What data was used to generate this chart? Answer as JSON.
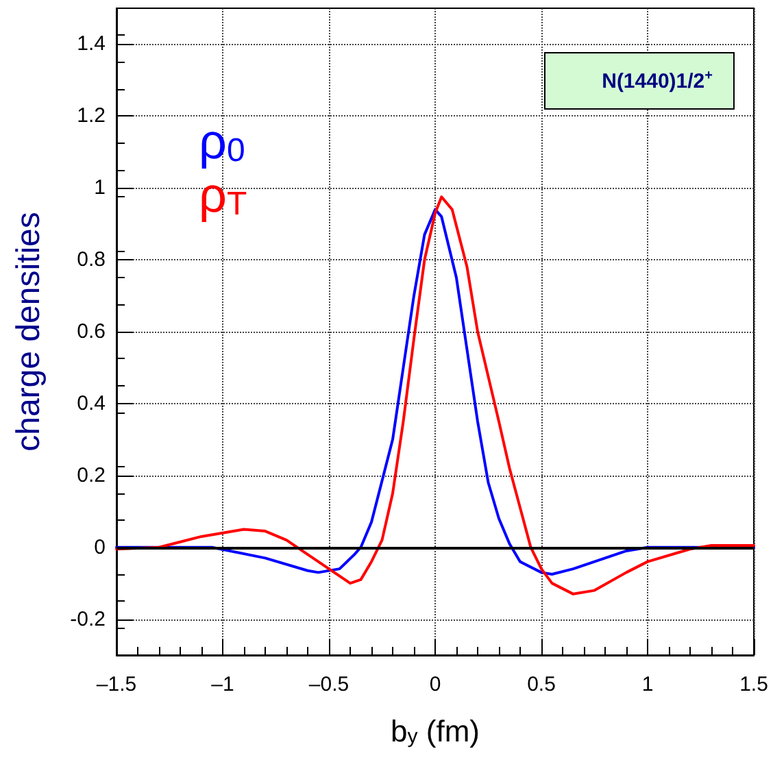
{
  "chart_data": {
    "type": "line",
    "xlabel": "b$_{y}$ (fm)",
    "ylabel": "charge densities",
    "annotations": [
      "N(1440)1/2$^{+}$"
    ],
    "xlim": [
      -1.5,
      1.5
    ],
    "xticks": [
      {
        "value": -1.5,
        "label": "–1.5"
      },
      {
        "value": -1,
        "label": "–1"
      },
      {
        "value": -0.5,
        "label": "–0.5"
      },
      0,
      0.5,
      1,
      1.5
    ],
    "ylim": [
      -0.3,
      1.5
    ],
    "yticks": [
      -0.2,
      0,
      0.2,
      0.4,
      0.6,
      0.8,
      1,
      1.2,
      1.4
    ],
    "grid": true,
    "legend": "top left",
    "marker": "none",
    "line_style": "solid",
    "ref_lines": [
      {
        "axis": "y",
        "value": 0,
        "label": null,
        "color": "#000000"
      }
    ],
    "series": [
      {
        "name": "ρ$_{0}$",
        "color": "#0000ff",
        "x": [
          -1.5,
          -1.05,
          -0.8,
          -0.6,
          -0.55,
          -0.45,
          -0.38,
          -0.35,
          -0.3,
          -0.2,
          -0.15,
          -0.1,
          -0.05,
          0,
          0.03,
          0.1,
          0.15,
          0.2,
          0.25,
          0.3,
          0.35,
          0.4,
          0.5,
          0.55,
          0.65,
          0.8,
          0.9,
          1.0,
          1.5
        ],
        "values": [
          0,
          0,
          -0.03,
          -0.065,
          -0.07,
          -0.06,
          -0.02,
          0,
          0.07,
          0.3,
          0.5,
          0.7,
          0.87,
          0.94,
          0.92,
          0.75,
          0.55,
          0.35,
          0.18,
          0.08,
          0.01,
          -0.04,
          -0.07,
          -0.075,
          -0.06,
          -0.03,
          -0.01,
          0,
          0
        ]
      },
      {
        "name": "ρ$_{T}$",
        "color": "#ff0000",
        "x": [
          -1.5,
          -1.3,
          -1.1,
          -0.9,
          -0.8,
          -0.7,
          -0.6,
          -0.5,
          -0.4,
          -0.35,
          -0.3,
          -0.25,
          -0.2,
          -0.15,
          -0.1,
          -0.05,
          0,
          0.03,
          0.08,
          0.15,
          0.2,
          0.3,
          0.35,
          0.45,
          0.5,
          0.55,
          0.65,
          0.75,
          0.9,
          1.0,
          1.2,
          1.3,
          1.5
        ],
        "values": [
          -0.005,
          0,
          0.03,
          0.05,
          0.045,
          0.02,
          -0.02,
          -0.06,
          -0.1,
          -0.09,
          -0.04,
          0.02,
          0.15,
          0.35,
          0.58,
          0.8,
          0.93,
          0.975,
          0.94,
          0.78,
          0.6,
          0.35,
          0.22,
          0,
          -0.06,
          -0.1,
          -0.13,
          -0.12,
          -0.07,
          -0.04,
          -0.005,
          0.005,
          0.005
        ]
      }
    ]
  }
}
